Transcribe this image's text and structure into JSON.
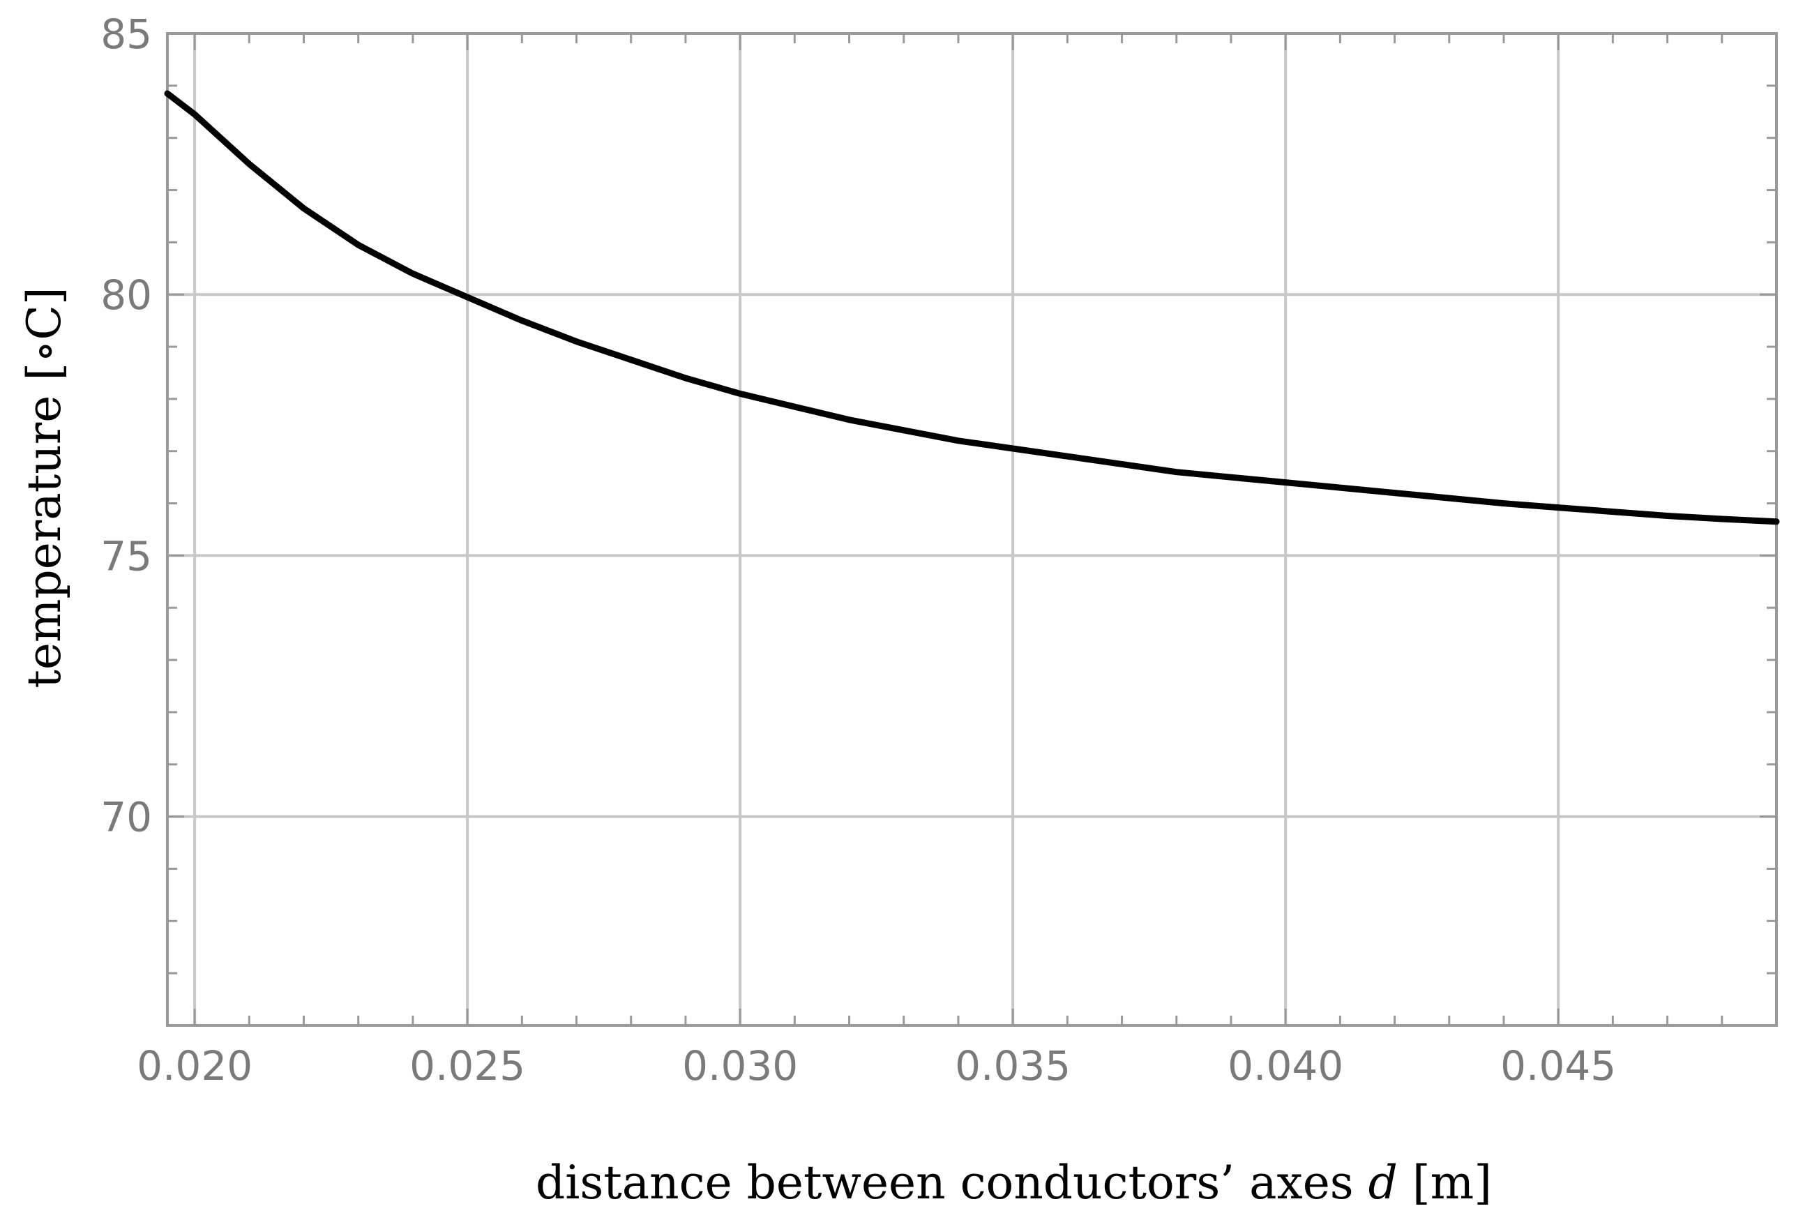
{
  "chart_data": {
    "type": "line",
    "xlabel": {
      "prefix": "distance between conductors’ axes ",
      "variable": "d",
      "suffix": " [m]"
    },
    "ylabel": "temperature [∘C]",
    "xlim": [
      0.0195,
      0.049
    ],
    "ylim": [
      66,
      85
    ],
    "x_ticks": [
      "0.020",
      "0.025",
      "0.030",
      "0.035",
      "0.040",
      "0.045"
    ],
    "x_tick_values": [
      0.02,
      0.025,
      0.03,
      0.035,
      0.04,
      0.045
    ],
    "y_ticks": [
      "85",
      "80",
      "75",
      "70"
    ],
    "y_tick_values": [
      85,
      80,
      75,
      70
    ],
    "x_minor_step": 0.001,
    "y_minor_step": 1,
    "grid": true,
    "colors": {
      "line": "#000000",
      "grid": "#c8c8c8",
      "frame": "#999999",
      "ticks": "#7a7a7a"
    },
    "series": [
      {
        "x": [
          0.0195,
          0.02,
          0.021,
          0.022,
          0.023,
          0.024,
          0.025,
          0.026,
          0.027,
          0.028,
          0.029,
          0.03,
          0.031,
          0.032,
          0.033,
          0.034,
          0.035,
          0.036,
          0.037,
          0.038,
          0.039,
          0.04,
          0.041,
          0.042,
          0.043,
          0.044,
          0.045,
          0.046,
          0.047,
          0.048,
          0.049
        ],
        "y": [
          83.85,
          83.45,
          82.5,
          81.65,
          80.95,
          80.4,
          79.95,
          79.5,
          79.1,
          78.75,
          78.4,
          78.1,
          77.85,
          77.6,
          77.4,
          77.2,
          77.05,
          76.9,
          76.75,
          76.6,
          76.5,
          76.4,
          76.3,
          76.2,
          76.1,
          76.0,
          75.92,
          75.84,
          75.76,
          75.7,
          75.65
        ]
      }
    ]
  }
}
